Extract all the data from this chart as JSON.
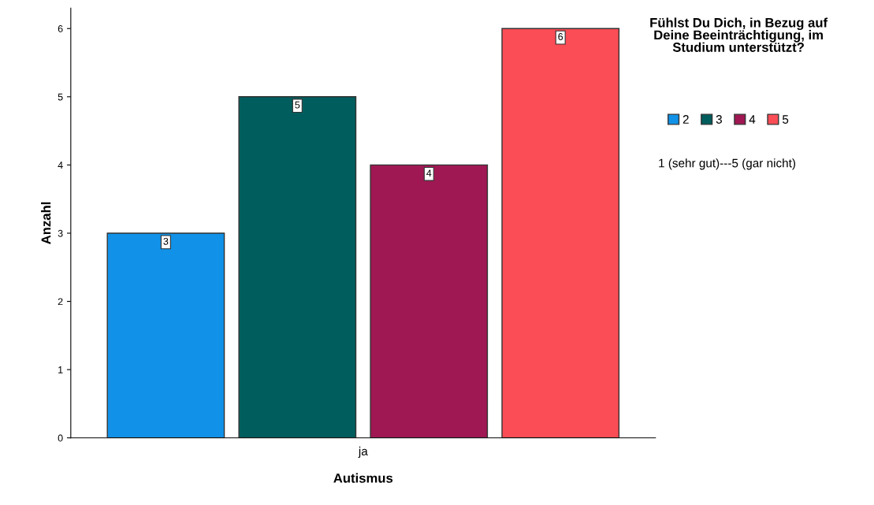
{
  "chart_data": {
    "type": "bar",
    "xlabel": "Autismus",
    "ylabel": "Anzahl",
    "legend_title": "Fühlst Du Dich, in Bezug auf Deine Beeinträchtigung, im Studium unterstützt?",
    "categories": [
      "ja"
    ],
    "series": [
      {
        "name": "2",
        "color": "#1192e8",
        "values": [
          3
        ]
      },
      {
        "name": "3",
        "color": "#005d5d",
        "values": [
          5
        ]
      },
      {
        "name": "4",
        "color": "#9f1853",
        "values": [
          4
        ]
      },
      {
        "name": "5",
        "color": "#fa4d56",
        "values": [
          6
        ]
      }
    ],
    "ylim": [
      0,
      6.3
    ],
    "yticks": [
      0,
      1,
      2,
      3,
      4,
      5,
      6
    ],
    "grid": false,
    "legend": "top right",
    "data_labels": true,
    "annotations": [
      "1 (sehr gut)---5 (gar nicht)"
    ]
  }
}
